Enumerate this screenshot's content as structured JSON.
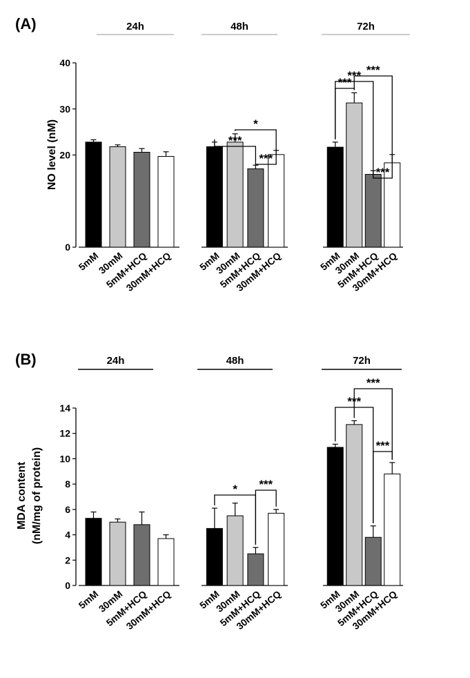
{
  "chart_data": [
    {
      "panel_label": "(A)",
      "type": "bar",
      "ylabel": "NO level (nM)",
      "ylim": [
        0,
        40
      ],
      "y_ticks": [
        "0",
        "20",
        "30",
        "40"
      ],
      "grid": false,
      "group_header_style": "gray",
      "categories": [
        "5mM",
        "30mM",
        "5mM+HCQ",
        "30mM+HCQ"
      ],
      "groups": [
        {
          "name": "24h",
          "values": [
            22.8,
            21.8,
            20.6,
            19.7
          ],
          "errors": [
            0.5,
            0.4,
            0.8,
            1.0
          ]
        },
        {
          "name": "48h",
          "values": [
            21.8,
            22.8,
            17.0,
            20.1
          ],
          "errors": [
            1.0,
            1.8,
            0.8,
            0.9
          ]
        },
        {
          "name": "72h",
          "values": [
            21.7,
            31.3,
            15.8,
            18.3
          ],
          "errors": [
            1.1,
            2.2,
            0.8,
            1.8
          ]
        }
      ],
      "bar_colors": [
        "#000000",
        "#c8c8c8",
        "#6e6e6e",
        "#ffffff"
      ],
      "significance": [
        {
          "group": "48h",
          "from": 0,
          "to": 2,
          "label": "***"
        },
        {
          "group": "48h",
          "from": 1,
          "to": 3,
          "label": "*"
        },
        {
          "group": "48h",
          "from": 2,
          "to": 3,
          "label": "***"
        },
        {
          "group": "72h",
          "from": 0,
          "to": 1,
          "label": "***"
        },
        {
          "group": "72h",
          "from": 0,
          "to": 2,
          "label": "***"
        },
        {
          "group": "72h",
          "from": 1,
          "to": 3,
          "label": "***"
        },
        {
          "group": "72h",
          "from": 2,
          "to": 3,
          "label": "***"
        }
      ]
    },
    {
      "panel_label": "(B)",
      "type": "bar",
      "ylabel": "MDA content",
      "ylabel2": "(nM/mg of protein)",
      "ylim": [
        0,
        14
      ],
      "y_ticks": [
        "0",
        "2",
        "4",
        "6",
        "8",
        "10",
        "12",
        "14"
      ],
      "grid": false,
      "group_header_style": "black",
      "categories": [
        "5mM",
        "30mM",
        "5mM+HCQ",
        "30mM+HCQ"
      ],
      "groups": [
        {
          "name": "24h",
          "values": [
            5.3,
            5.0,
            4.8,
            3.7
          ],
          "errors": [
            0.5,
            0.25,
            1.0,
            0.3
          ]
        },
        {
          "name": "48h",
          "values": [
            4.5,
            5.5,
            2.5,
            5.7
          ],
          "errors": [
            1.6,
            1.0,
            0.5,
            0.3
          ]
        },
        {
          "name": "72h",
          "values": [
            10.9,
            12.7,
            3.8,
            8.8
          ],
          "errors": [
            0.25,
            0.3,
            0.9,
            0.9
          ]
        }
      ],
      "bar_colors": [
        "#000000",
        "#c8c8c8",
        "#6e6e6e",
        "#ffffff"
      ],
      "significance": [
        {
          "group": "48h",
          "from": 0,
          "to": 2,
          "label": "*"
        },
        {
          "group": "48h",
          "from": 2,
          "to": 3,
          "label": "***"
        },
        {
          "group": "72h",
          "from": 0,
          "to": 2,
          "label": "***"
        },
        {
          "group": "72h",
          "from": 1,
          "to": 3,
          "label": "***"
        },
        {
          "group": "72h",
          "from": 2,
          "to": 3,
          "label": "***"
        }
      ]
    }
  ]
}
